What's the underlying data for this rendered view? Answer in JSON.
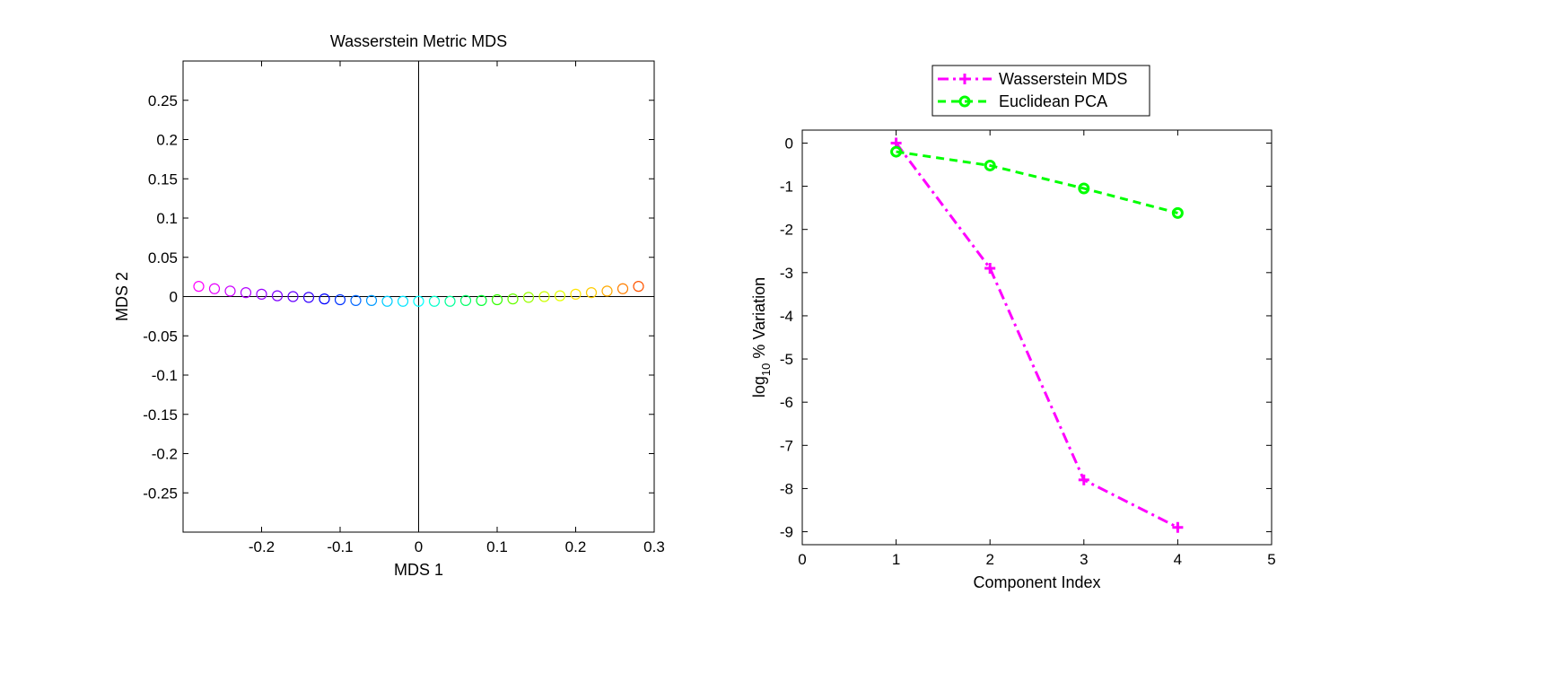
{
  "chart_data": [
    {
      "type": "scatter",
      "title": "Wasserstein Metric MDS",
      "xlabel": "MDS 1",
      "ylabel": "MDS 2",
      "xlim": [
        -0.3,
        0.3
      ],
      "ylim": [
        -0.3,
        0.3
      ],
      "xticks": [
        -0.2,
        -0.1,
        0,
        0.1,
        0.2,
        0.3
      ],
      "xtick_labels": [
        "-0.2",
        "-0.1",
        "0",
        "0.1",
        "0.2",
        "0.3"
      ],
      "yticks": [
        0.25,
        0.2,
        0.15,
        0.1,
        0.05,
        0,
        -0.05,
        -0.1,
        -0.15,
        -0.2,
        -0.25
      ],
      "ytick_labels": [
        "0.25",
        "0.2",
        "0.15",
        "0.1",
        "0.05",
        "0",
        "-0.05",
        "-0.1",
        "-0.15",
        "-0.2",
        "-0.25"
      ],
      "marker": "circle-open",
      "reference_lines": {
        "x0": true,
        "y0": true
      },
      "points": [
        {
          "x": -0.28,
          "y": 0.013,
          "color": "#ff00ff"
        },
        {
          "x": -0.26,
          "y": 0.01,
          "color": "#e600ff"
        },
        {
          "x": -0.24,
          "y": 0.007,
          "color": "#cc00ff"
        },
        {
          "x": -0.22,
          "y": 0.005,
          "color": "#b200ff"
        },
        {
          "x": -0.2,
          "y": 0.003,
          "color": "#9900ff"
        },
        {
          "x": -0.18,
          "y": 0.001,
          "color": "#7f00ff"
        },
        {
          "x": -0.16,
          "y": 0.0,
          "color": "#6600ff"
        },
        {
          "x": -0.14,
          "y": -0.001,
          "color": "#3300ff"
        },
        {
          "x": -0.12,
          "y": -0.003,
          "color": "#0000ff"
        },
        {
          "x": -0.1,
          "y": -0.004,
          "color": "#0033ff"
        },
        {
          "x": -0.08,
          "y": -0.005,
          "color": "#0066ff"
        },
        {
          "x": -0.06,
          "y": -0.005,
          "color": "#0099ff"
        },
        {
          "x": -0.04,
          "y": -0.006,
          "color": "#00ccff"
        },
        {
          "x": -0.02,
          "y": -0.006,
          "color": "#00e5ff"
        },
        {
          "x": 0.0,
          "y": -0.006,
          "color": "#00ffff"
        },
        {
          "x": 0.02,
          "y": -0.006,
          "color": "#00ffcc"
        },
        {
          "x": 0.04,
          "y": -0.006,
          "color": "#00ff99"
        },
        {
          "x": 0.06,
          "y": -0.005,
          "color": "#00ff66"
        },
        {
          "x": 0.08,
          "y": -0.005,
          "color": "#00ff33"
        },
        {
          "x": 0.1,
          "y": -0.004,
          "color": "#33ff00"
        },
        {
          "x": 0.12,
          "y": -0.003,
          "color": "#66ff00"
        },
        {
          "x": 0.14,
          "y": -0.001,
          "color": "#99ff00"
        },
        {
          "x": 0.16,
          "y": 0.0,
          "color": "#ccff00"
        },
        {
          "x": 0.18,
          "y": 0.001,
          "color": "#e5ff00"
        },
        {
          "x": 0.2,
          "y": 0.003,
          "color": "#ffe500"
        },
        {
          "x": 0.22,
          "y": 0.005,
          "color": "#ffcc00"
        },
        {
          "x": 0.24,
          "y": 0.007,
          "color": "#ffaa00"
        },
        {
          "x": 0.26,
          "y": 0.01,
          "color": "#ff7f00"
        },
        {
          "x": 0.28,
          "y": 0.013,
          "color": "#ff5500"
        }
      ]
    },
    {
      "type": "line",
      "title": "",
      "xlabel": "Component Index",
      "ylabel_main": "log",
      "ylabel_sub": "10",
      "ylabel_rest": " % Variation",
      "xlim": [
        0,
        5
      ],
      "ylim": [
        -9.3,
        0.3
      ],
      "xticks": [
        0,
        1,
        2,
        3,
        4,
        5
      ],
      "xtick_labels": [
        "0",
        "1",
        "2",
        "3",
        "4",
        "5"
      ],
      "yticks": [
        0,
        -1,
        -2,
        -3,
        -4,
        -5,
        -6,
        -7,
        -8,
        -9
      ],
      "ytick_labels": [
        "0",
        "-1",
        "-2",
        "-3",
        "-4",
        "-5",
        "-6",
        "-7",
        "-8",
        "-9"
      ],
      "legend_position": "top",
      "x": [
        1,
        2,
        3,
        4
      ],
      "series": [
        {
          "name": "Wasserstein MDS",
          "values": [
            0,
            -2.9,
            -7.8,
            -8.9
          ],
          "color": "#ff00ff",
          "dash": "dashdot",
          "marker": "plus"
        },
        {
          "name": "Euclidean PCA",
          "values": [
            -0.2,
            -0.52,
            -1.05,
            -1.62
          ],
          "color": "#00ff00",
          "dash": "dashed",
          "marker": "circle-open"
        }
      ]
    }
  ]
}
